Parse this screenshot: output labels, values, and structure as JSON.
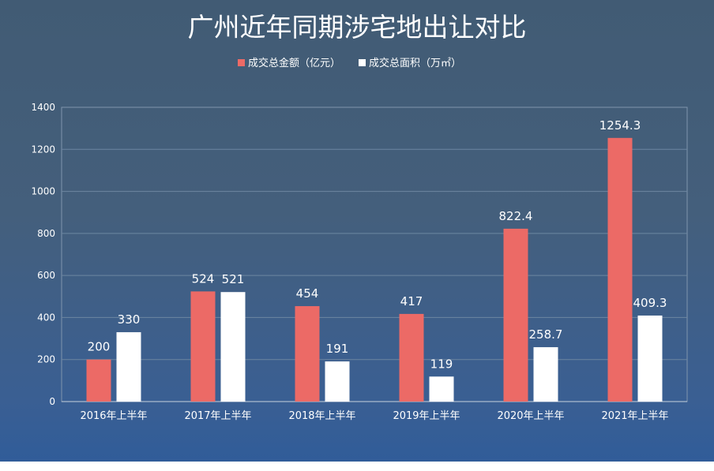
{
  "chart_data": {
    "type": "bar",
    "title": "广州近年同期涉宅地出让对比",
    "categories": [
      "2016年上半年",
      "2017年上半年",
      "2018年上半年",
      "2019年上半年",
      "2020年上半年",
      "2021年上半年"
    ],
    "series": [
      {
        "name": "成交总金额（亿元）",
        "values": [
          200,
          524,
          454,
          417,
          822.4,
          1254.3
        ],
        "labels": [
          "200",
          "524",
          "454",
          "417",
          "822.4",
          "1254.3"
        ],
        "color": "#ec6a66"
      },
      {
        "name": "成交总面积（万㎡）",
        "values": [
          330,
          521,
          191,
          119,
          258.7,
          409.3
        ],
        "labels": [
          "330",
          "521",
          "191",
          "119",
          "258.7",
          "409.3"
        ],
        "color": "#ffffff"
      }
    ],
    "ylim": [
      0,
      1400
    ],
    "yticks": [
      "0",
      "200",
      "400",
      "600",
      "800",
      "1000",
      "1200",
      "1400"
    ],
    "grid": true,
    "legend_position": "top-center"
  }
}
